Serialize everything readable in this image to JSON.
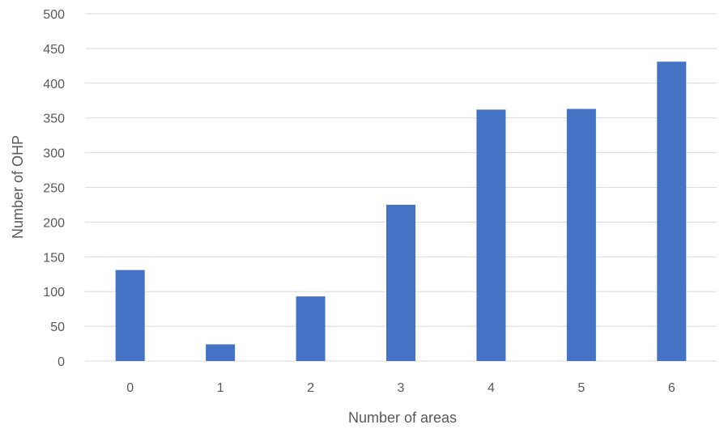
{
  "chart_data": {
    "type": "bar",
    "categories": [
      "0",
      "1",
      "2",
      "3",
      "4",
      "5",
      "6"
    ],
    "values": [
      131,
      24,
      93,
      225,
      362,
      363,
      431
    ],
    "xlabel": "Number of areas",
    "ylabel": "Number of OHP",
    "ylim": [
      0,
      500
    ],
    "yticks": [
      "0",
      "50",
      "100",
      "150",
      "200",
      "250",
      "300",
      "350",
      "400",
      "450",
      "500"
    ],
    "grid": true,
    "bar_color": "#4472c4"
  }
}
